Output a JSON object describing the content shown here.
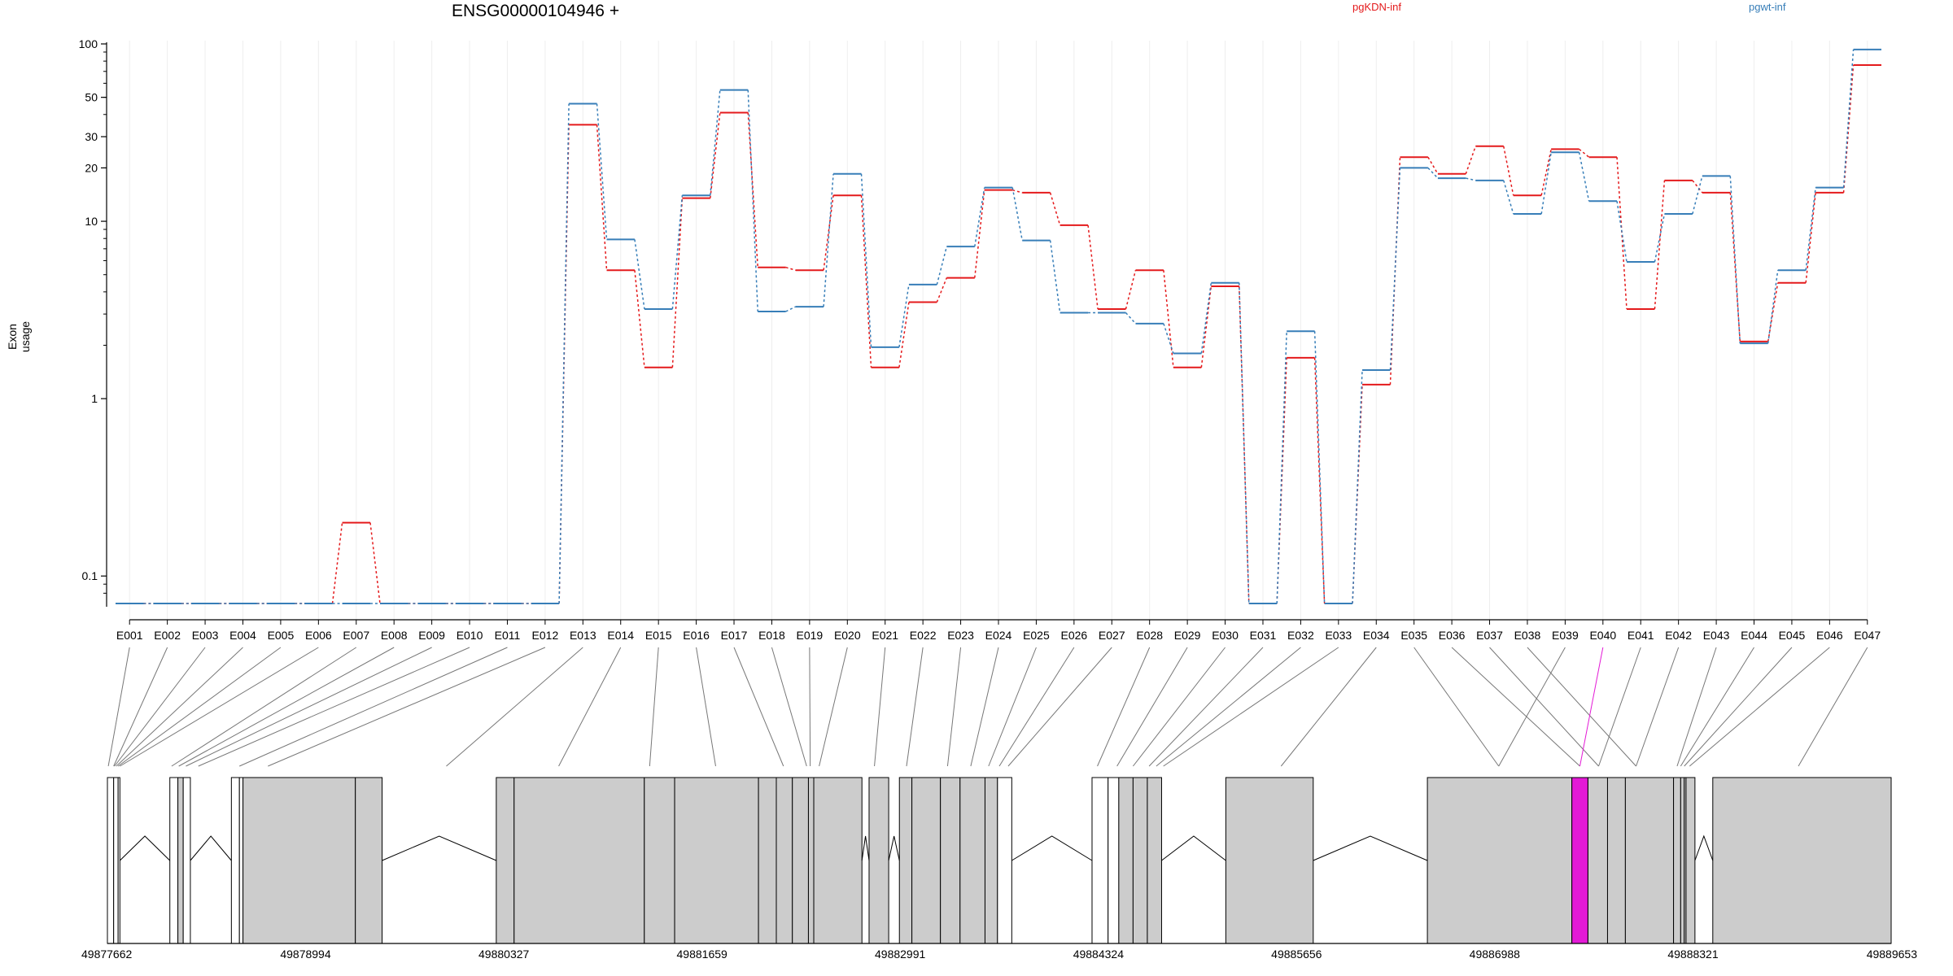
{
  "title": "ENSG00000104946 +",
  "legend": [
    {
      "label": "pgKDN-inf",
      "color": "#e41a1c"
    },
    {
      "label": "pgwt-inf",
      "color": "#377eb8"
    }
  ],
  "highlight_color": "#e31ad6",
  "chart_data": {
    "type": "line",
    "ylabel": "Exon usage",
    "yscale": "log",
    "ylim": [
      0.07,
      100
    ],
    "yticks": [
      "100",
      "50",
      "30",
      "20",
      "10",
      "1",
      "0.1"
    ],
    "categories": [
      "E001",
      "E002",
      "E003",
      "E004",
      "E005",
      "E006",
      "E007",
      "E008",
      "E009",
      "E010",
      "E011",
      "E012",
      "E013",
      "E014",
      "E015",
      "E016",
      "E017",
      "E018",
      "E019",
      "E020",
      "E021",
      "E022",
      "E023",
      "E024",
      "E025",
      "E026",
      "E027",
      "E028",
      "E029",
      "E030",
      "E031",
      "E032",
      "E033",
      "E034",
      "E035",
      "E036",
      "E037",
      "E038",
      "E039",
      "E040",
      "E041",
      "E042",
      "E043",
      "E044",
      "E045",
      "E046",
      "E047"
    ],
    "series": [
      {
        "name": "pgKDN-inf",
        "color": "#e41a1c",
        "values": [
          0.07,
          0.07,
          0.07,
          0.07,
          0.07,
          0.07,
          0.2,
          0.07,
          0.07,
          0.07,
          0.07,
          0.07,
          35,
          5.3,
          1.5,
          13.5,
          41,
          5.5,
          5.3,
          14,
          1.5,
          3.5,
          4.8,
          15,
          14.5,
          9.5,
          3.2,
          5.3,
          1.5,
          4.3,
          0.07,
          1.7,
          0.07,
          1.2,
          23,
          18.5,
          26.5,
          14,
          25.5,
          23,
          3.2,
          17,
          14.5,
          2.1,
          4.5,
          14.5,
          76
        ]
      },
      {
        "name": "pgwt-inf",
        "color": "#377eb8",
        "values": [
          0.07,
          0.07,
          0.07,
          0.07,
          0.07,
          0.07,
          0.07,
          0.07,
          0.07,
          0.07,
          0.07,
          0.07,
          46,
          7.9,
          3.2,
          14,
          55,
          3.1,
          3.3,
          18.5,
          1.95,
          4.4,
          7.2,
          15.5,
          7.8,
          3.05,
          3.05,
          2.65,
          1.8,
          4.5,
          0.07,
          2.4,
          0.07,
          1.45,
          20,
          17.5,
          17,
          11,
          24.5,
          13,
          5.9,
          11,
          18,
          2.05,
          5.3,
          15.5,
          93
        ]
      }
    ],
    "highlight_exon": "E040",
    "genomic_ticks": [
      "49877662",
      "49878994",
      "49880327",
      "49881659",
      "49882991",
      "49884324",
      "49885656",
      "49886988",
      "49888321",
      "49889653"
    ],
    "genomic_range": [
      49877662,
      49889653
    ]
  }
}
